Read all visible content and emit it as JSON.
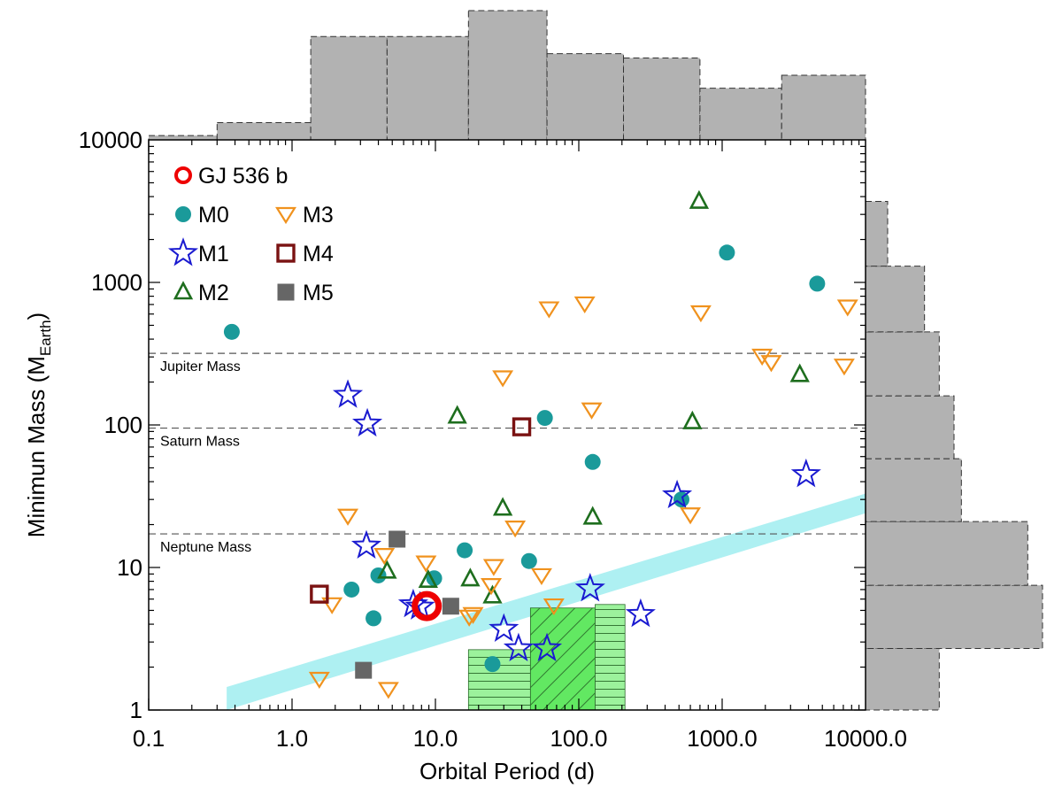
{
  "chart_data": {
    "type": "scatter",
    "xscale": "log",
    "yscale": "log",
    "xlabel": "Orbital Period (d)",
    "ylabel_main": "Minimun Mass (M",
    "ylabel_sub": "Earth",
    "ylabel_close": ")",
    "xlim": [
      0.1,
      10000
    ],
    "ylim": [
      1,
      10000
    ],
    "x_ticks": [
      {
        "value": 0.1,
        "label": "0.1"
      },
      {
        "value": 1,
        "label": "1.0"
      },
      {
        "value": 10,
        "label": "10.0"
      },
      {
        "value": 100,
        "label": "100.0"
      },
      {
        "value": 1000,
        "label": "1000.0"
      },
      {
        "value": 10000,
        "label": "10000.0"
      }
    ],
    "y_ticks": [
      {
        "value": 1,
        "label": "1"
      },
      {
        "value": 10,
        "label": "10"
      },
      {
        "value": 100,
        "label": "100"
      },
      {
        "value": 1000,
        "label": "1000"
      },
      {
        "value": 10000,
        "label": "10000"
      }
    ],
    "reference_lines": [
      {
        "name": "jupiter",
        "label": "Jupiter Mass",
        "value": 318
      },
      {
        "name": "saturn",
        "label": "Saturn Mass",
        "value": 95
      },
      {
        "name": "neptune",
        "label": "Neptune Mass",
        "value": 17.2
      }
    ],
    "detection_band": {
      "x": [
        0.35,
        10000
      ],
      "lower": [
        1.0,
        24.0
      ],
      "upper": [
        1.45,
        33.0
      ],
      "color": "#aef0f2"
    },
    "green_regions": [
      {
        "name": "horizontal-hatch-left",
        "x": [
          17,
          46
        ],
        "y_top": 2.65,
        "hatch": "horizontal"
      },
      {
        "name": "diagonal-hatch",
        "x": [
          46,
          130
        ],
        "y_top": 5.2,
        "hatch": "diagonal"
      },
      {
        "name": "horizontal-hatch-right",
        "x": [
          130,
          210
        ],
        "y_top": 5.5,
        "hatch": "horizontal"
      }
    ],
    "legend": {
      "placement": "top-left",
      "entries": [
        {
          "key": "gj536b",
          "label": "GJ 536 b"
        },
        {
          "key": "M0",
          "label": "M0"
        },
        {
          "key": "M1",
          "label": "M1"
        },
        {
          "key": "M2",
          "label": "M2"
        },
        {
          "key": "M3",
          "label": "M3"
        },
        {
          "key": "M4",
          "label": "M4"
        },
        {
          "key": "M5",
          "label": "M5"
        }
      ]
    },
    "series": [
      {
        "key": "M0",
        "name": "M0",
        "marker": "circle",
        "color": "#1a9a9a",
        "points": [
          [
            0.38,
            450
          ],
          [
            2.6,
            7.0
          ],
          [
            3.7,
            4.4
          ],
          [
            4.0,
            8.8
          ],
          [
            9.8,
            8.4
          ],
          [
            16,
            13.2
          ],
          [
            25,
            2.1
          ],
          [
            45,
            11.1
          ],
          [
            58,
            112
          ],
          [
            125,
            55
          ],
          [
            520,
            30
          ],
          [
            1080,
            1620
          ],
          [
            4600,
            980
          ]
        ]
      },
      {
        "key": "M1",
        "name": "M1",
        "marker": "star",
        "color": "#1a1ad0",
        "points": [
          [
            2.45,
            162
          ],
          [
            3.35,
            102
          ],
          [
            3.3,
            14.2
          ],
          [
            7.0,
            5.5
          ],
          [
            7.8,
            5.3
          ],
          [
            30,
            3.7
          ],
          [
            38,
            2.7
          ],
          [
            60,
            2.7
          ],
          [
            120,
            7.1
          ],
          [
            270,
            4.7
          ],
          [
            485,
            32
          ],
          [
            3850,
            45
          ]
        ]
      },
      {
        "key": "M2",
        "name": "M2",
        "marker": "triangle-up",
        "color": "#1e6e1e",
        "points": [
          [
            4.6,
            9.4
          ],
          [
            8.9,
            8.1
          ],
          [
            14.2,
            115
          ],
          [
            17.5,
            8.3
          ],
          [
            25,
            6.3
          ],
          [
            29.5,
            26
          ],
          [
            125,
            22.5
          ],
          [
            620,
            105
          ],
          [
            690,
            3700
          ],
          [
            3480,
            225
          ]
        ]
      },
      {
        "key": "M3",
        "name": "M3",
        "marker": "triangle-down",
        "color": "#f0921e",
        "points": [
          [
            1.55,
            1.65
          ],
          [
            1.9,
            5.5
          ],
          [
            2.45,
            23
          ],
          [
            4.4,
            12.2
          ],
          [
            4.7,
            1.4
          ],
          [
            8.6,
            10.8
          ],
          [
            17.2,
            4.5
          ],
          [
            18.3,
            4.7
          ],
          [
            24.5,
            7.5
          ],
          [
            25.5,
            10.2
          ],
          [
            29.5,
            215
          ],
          [
            36,
            19
          ],
          [
            62,
            655
          ],
          [
            55,
            8.8
          ],
          [
            67,
            5.4
          ],
          [
            110,
            710
          ],
          [
            123,
            128
          ],
          [
            600,
            23.5
          ],
          [
            710,
            615
          ],
          [
            1900,
            305
          ],
          [
            2200,
            275
          ],
          [
            7100,
            260
          ],
          [
            7500,
            675
          ]
        ]
      },
      {
        "key": "M4",
        "name": "M4",
        "marker": "square-open",
        "color": "#7a1212",
        "points": [
          [
            1.55,
            6.5
          ],
          [
            40,
            97
          ]
        ]
      },
      {
        "key": "M5",
        "name": "M5",
        "marker": "square-filled",
        "color": "#666666",
        "points": [
          [
            3.15,
            1.9
          ],
          [
            5.4,
            15.8
          ],
          [
            12.8,
            5.35
          ]
        ]
      },
      {
        "key": "gj536b",
        "name": "GJ 536 b",
        "marker": "circle-open-large",
        "color": "#ee0000",
        "points": [
          [
            8.7,
            5.36
          ]
        ]
      }
    ],
    "histogram_top": {
      "bins": [
        [
          0.1,
          0.3
        ],
        [
          0.3,
          1.35
        ],
        [
          1.35,
          4.6
        ],
        [
          4.6,
          17
        ],
        [
          17,
          60
        ],
        [
          60,
          205
        ],
        [
          205,
          700
        ],
        [
          700,
          2600
        ],
        [
          2600,
          10000
        ]
      ],
      "counts": [
        1,
        4,
        24,
        24,
        30,
        20,
        19,
        12,
        15
      ],
      "color": "#b2b2b2"
    },
    "histogram_right": {
      "bins": [
        [
          1,
          2.7
        ],
        [
          2.7,
          7.5
        ],
        [
          7.5,
          21
        ],
        [
          21,
          58
        ],
        [
          58,
          160
        ],
        [
          160,
          450
        ],
        [
          450,
          1300
        ],
        [
          1300,
          3700
        ]
      ],
      "counts": [
        10,
        24,
        22,
        13,
        12,
        10,
        8,
        3
      ],
      "color": "#b2b2b2"
    }
  }
}
